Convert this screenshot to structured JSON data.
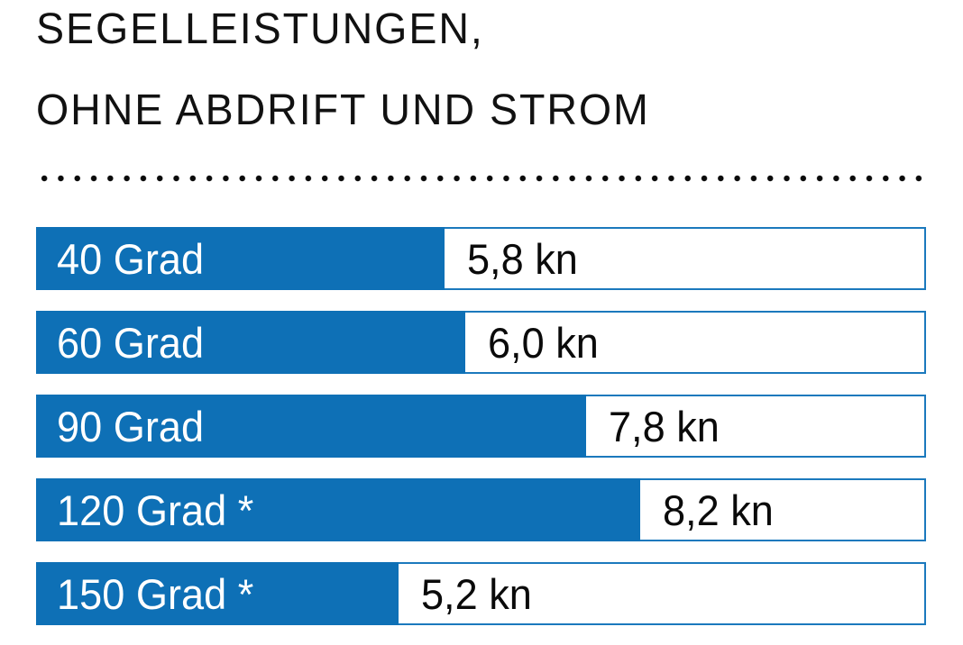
{
  "title": {
    "line1": "SEGELLEISTUNGEN,",
    "line2": "OHNE ABDRIFT UND STROM"
  },
  "colors": {
    "bar_blue": "#0e70b6",
    "track_border_blue": "#1b79bd",
    "title_black": "#111111",
    "value_black": "#0a0a0a",
    "bar_label_white": "#ffffff",
    "dot_black": "#0a0a0a"
  },
  "chart_data": {
    "type": "bar",
    "orientation": "horizontal",
    "title": "SEGELLEISTUNGEN, OHNE ABDRIFT UND STROM",
    "unit": "kn",
    "categories": [
      "40 Grad",
      "60 Grad",
      "90 Grad",
      "120 Grad *",
      "150 Grad *"
    ],
    "values": [
      5.8,
      6.0,
      7.8,
      8.2,
      5.2
    ],
    "value_labels": [
      "5,8 kn",
      "6,0 kn",
      "7,8 kn",
      "8,2 kn",
      "5,2 kn"
    ],
    "bar_width_pct": [
      46.1,
      48.4,
      62.1,
      68.2,
      40.9
    ],
    "xlim": [
      0,
      12.4
    ],
    "grid": false,
    "legend": false,
    "value_label_position": "outside-right",
    "category_label_position": "inside-left"
  }
}
